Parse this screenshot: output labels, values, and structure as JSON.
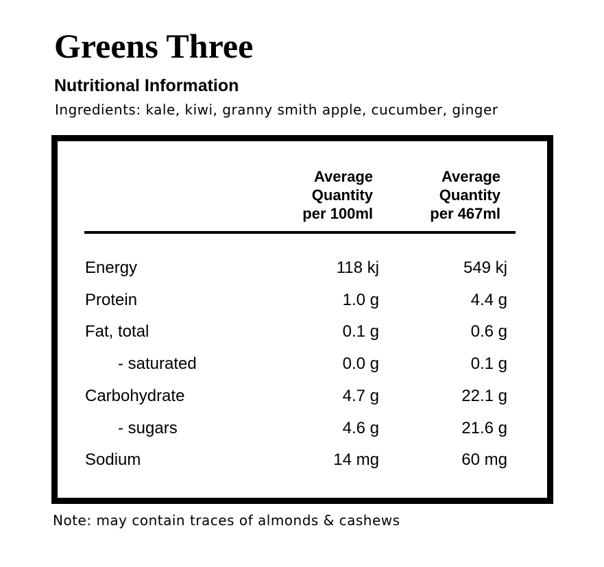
{
  "header": {
    "title": "Greens Three",
    "subtitle": "Nutritional Information",
    "ingredients": "Ingredients: kale, kiwi, granny smith apple, cucumber, ginger"
  },
  "table": {
    "columns": [
      "Average\nQuantity\nper 100ml",
      "Average\nQuantity\nper 467ml"
    ],
    "rows": [
      [
        "Energy",
        "118 kj",
        "549 kj"
      ],
      [
        "Protein",
        "1.0 g",
        "4.4 g"
      ],
      [
        "Fat, total",
        "0.1 g",
        "0.6 g"
      ],
      [
        "- saturated",
        "0.0 g",
        "0.1 g"
      ],
      [
        "Carbohydrate",
        "4.7 g",
        "22.1 g"
      ],
      [
        "- sugars",
        "4.6 g",
        "21.6 g"
      ],
      [
        "Sodium",
        "14 mg",
        "60 mg"
      ]
    ],
    "indented": [
      false,
      false,
      false,
      true,
      false,
      true,
      false
    ]
  },
  "note": "Note: may contain traces of almonds & cashews"
}
